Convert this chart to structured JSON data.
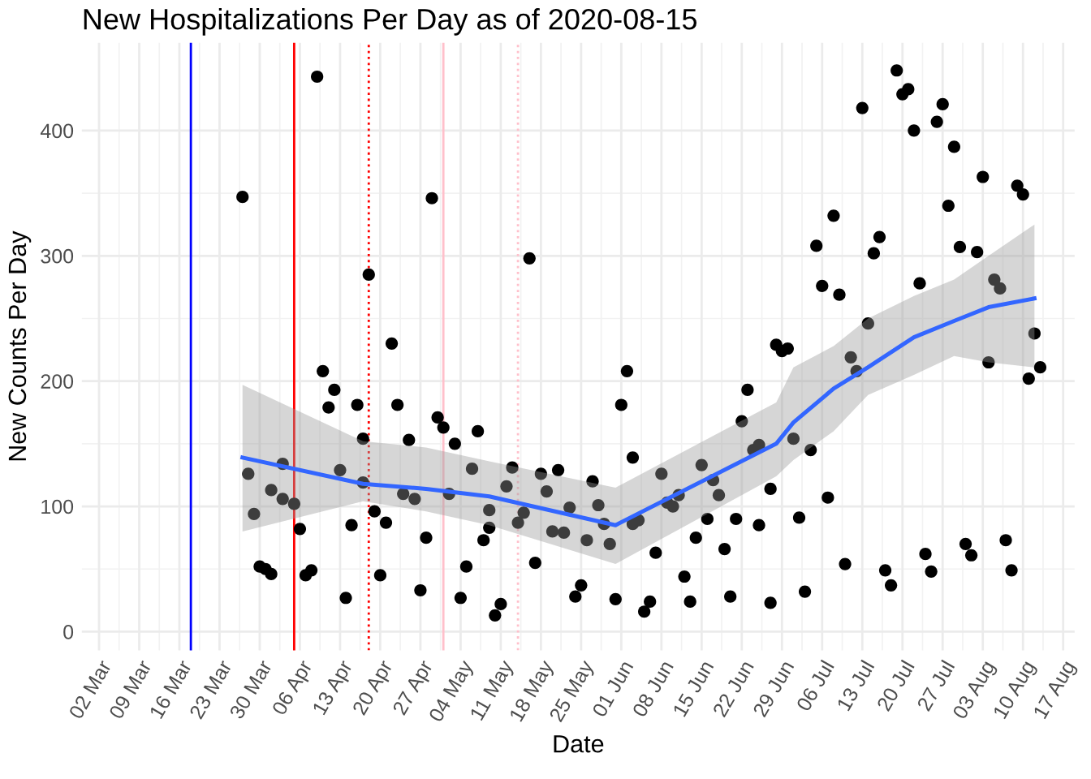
{
  "chart_data": {
    "type": "scatter",
    "title": "New Hospitalizations Per Day as of 2020-08-15",
    "xlabel": "Date",
    "ylabel": "New Counts Per Day",
    "series": [
      {
        "color": "#000000",
        "x": [
          "2020-03-27",
          "2020-03-28",
          "2020-03-29",
          "2020-03-30",
          "2020-03-31",
          "2020-04-01",
          "2020-04-01",
          "2020-04-03",
          "2020-04-03",
          "2020-04-05",
          "2020-04-06",
          "2020-04-07",
          "2020-04-08",
          "2020-04-09",
          "2020-04-10",
          "2020-04-11",
          "2020-04-12",
          "2020-04-13",
          "2020-04-14",
          "2020-04-15",
          "2020-04-16",
          "2020-04-17",
          "2020-04-17",
          "2020-04-18",
          "2020-04-19",
          "2020-04-20",
          "2020-04-21",
          "2020-04-22",
          "2020-04-23",
          "2020-04-24",
          "2020-04-25",
          "2020-04-26",
          "2020-04-27",
          "2020-04-28",
          "2020-04-29",
          "2020-04-30",
          "2020-05-01",
          "2020-05-02",
          "2020-05-03",
          "2020-05-04",
          "2020-05-05",
          "2020-05-06",
          "2020-05-07",
          "2020-05-08",
          "2020-05-09",
          "2020-05-09",
          "2020-05-10",
          "2020-05-11",
          "2020-05-12",
          "2020-05-13",
          "2020-05-14",
          "2020-05-15",
          "2020-05-16",
          "2020-05-17",
          "2020-05-18",
          "2020-05-19",
          "2020-05-20",
          "2020-05-21",
          "2020-05-22",
          "2020-05-23",
          "2020-05-24",
          "2020-05-25",
          "2020-05-26",
          "2020-05-27",
          "2020-05-28",
          "2020-05-29",
          "2020-05-30",
          "2020-05-31",
          "2020-06-01",
          "2020-06-02",
          "2020-06-03",
          "2020-06-03",
          "2020-06-04",
          "2020-06-05",
          "2020-06-06",
          "2020-06-07",
          "2020-06-08",
          "2020-06-09",
          "2020-06-10",
          "2020-06-11",
          "2020-06-12",
          "2020-06-13",
          "2020-06-14",
          "2020-06-15",
          "2020-06-16",
          "2020-06-17",
          "2020-06-18",
          "2020-06-19",
          "2020-06-20",
          "2020-06-21",
          "2020-06-22",
          "2020-06-23",
          "2020-06-24",
          "2020-06-25",
          "2020-06-25",
          "2020-06-27",
          "2020-06-27",
          "2020-06-28",
          "2020-06-29",
          "2020-06-30",
          "2020-07-01",
          "2020-07-02",
          "2020-07-03",
          "2020-07-04",
          "2020-07-05",
          "2020-07-06",
          "2020-07-07",
          "2020-07-08",
          "2020-07-09",
          "2020-07-10",
          "2020-07-11",
          "2020-07-12",
          "2020-07-13",
          "2020-07-14",
          "2020-07-15",
          "2020-07-16",
          "2020-07-17",
          "2020-07-18",
          "2020-07-19",
          "2020-07-20",
          "2020-07-21",
          "2020-07-22",
          "2020-07-23",
          "2020-07-24",
          "2020-07-25",
          "2020-07-26",
          "2020-07-27",
          "2020-07-28",
          "2020-07-29",
          "2020-07-30",
          "2020-07-31",
          "2020-08-01",
          "2020-08-02",
          "2020-08-03",
          "2020-08-04",
          "2020-08-05",
          "2020-08-06",
          "2020-08-07",
          "2020-08-08",
          "2020-08-09",
          "2020-08-10",
          "2020-08-11",
          "2020-08-12",
          "2020-08-13"
        ],
        "values": [
          347,
          126,
          94,
          52,
          50,
          46,
          113,
          134,
          106,
          102,
          82,
          45,
          49,
          443,
          208,
          179,
          193,
          129,
          27,
          85,
          181,
          154,
          119,
          285,
          96,
          45,
          87,
          230,
          181,
          110,
          153,
          106,
          33,
          75,
          346,
          171,
          163,
          110,
          150,
          27,
          52,
          130,
          160,
          73,
          83,
          97,
          13,
          22,
          116,
          131,
          87,
          95,
          298,
          55,
          126,
          112,
          80,
          129,
          79,
          99,
          28,
          37,
          73,
          120,
          101,
          86,
          70,
          26,
          181,
          208,
          86,
          139,
          89,
          16,
          24,
          63,
          126,
          103,
          100,
          109,
          44,
          24,
          75,
          133,
          90,
          121,
          109,
          66,
          28,
          90,
          168,
          193,
          145,
          149,
          85,
          23,
          114,
          229,
          224,
          226,
          154,
          91,
          32,
          145,
          308,
          276,
          107,
          332,
          269,
          54,
          219,
          208,
          418,
          246,
          302,
          315,
          49,
          37,
          448,
          429,
          433,
          400,
          278,
          62,
          48,
          407,
          421,
          340,
          387,
          307,
          70,
          61,
          303,
          363,
          215,
          281,
          274,
          73,
          49,
          356,
          349,
          202,
          238,
          211
        ]
      },
      {
        "type": "line",
        "marker": "none",
        "color": "#3366ff",
        "x": [
          "2020-03-27",
          "2020-04-17",
          "2020-04-28",
          "2020-05-09",
          "2020-05-31",
          "2020-06-28",
          "2020-07-01",
          "2020-07-08",
          "2020-07-14",
          "2020-07-22",
          "2020-07-29",
          "2020-08-04",
          "2020-08-12"
        ],
        "values": [
          139,
          118,
          114,
          108,
          85,
          150,
          167,
          194,
          211,
          235,
          248,
          259,
          266
        ],
        "lower": [
          80,
          104,
          96,
          85,
          54,
          124,
          137,
          160,
          189,
          205,
          220,
          215,
          211
        ],
        "upper": [
          197,
          152,
          147,
          136,
          115,
          183,
          211,
          228,
          250,
          268,
          281,
          300,
          325
        ]
      }
    ],
    "xlim": [
      "2020-02-28",
      "2020-08-19"
    ],
    "ylim": [
      -15,
      470
    ],
    "xticks": [
      {
        "value": "2020-03-02",
        "label": "02 Mar"
      },
      {
        "value": "2020-03-09",
        "label": "09 Mar"
      },
      {
        "value": "2020-03-16",
        "label": "16 Mar"
      },
      {
        "value": "2020-03-23",
        "label": "23 Mar"
      },
      {
        "value": "2020-03-30",
        "label": "30 Mar"
      },
      {
        "value": "2020-04-06",
        "label": "06 Apr"
      },
      {
        "value": "2020-04-13",
        "label": "13 Apr"
      },
      {
        "value": "2020-04-20",
        "label": "20 Apr"
      },
      {
        "value": "2020-04-27",
        "label": "27 Apr"
      },
      {
        "value": "2020-05-04",
        "label": "04 May"
      },
      {
        "value": "2020-05-11",
        "label": "11 May"
      },
      {
        "value": "2020-05-18",
        "label": "18 May"
      },
      {
        "value": "2020-05-25",
        "label": "25 May"
      },
      {
        "value": "2020-06-01",
        "label": "01 Jun"
      },
      {
        "value": "2020-06-08",
        "label": "08 Jun"
      },
      {
        "value": "2020-06-15",
        "label": "15 Jun"
      },
      {
        "value": "2020-06-22",
        "label": "22 Jun"
      },
      {
        "value": "2020-06-29",
        "label": "29 Jun"
      },
      {
        "value": "2020-07-06",
        "label": "06 Jul"
      },
      {
        "value": "2020-07-13",
        "label": "13 Jul"
      },
      {
        "value": "2020-07-20",
        "label": "20 Jul"
      },
      {
        "value": "2020-07-27",
        "label": "27 Jul"
      },
      {
        "value": "2020-08-03",
        "label": "03 Aug"
      },
      {
        "value": "2020-08-10",
        "label": "10 Aug"
      },
      {
        "value": "2020-08-17",
        "label": "17 Aug"
      }
    ],
    "yticks": [
      0,
      100,
      200,
      300,
      400
    ],
    "ref_lines": [
      {
        "axis": "x",
        "value": "2020-03-18",
        "color": "#0000ff",
        "line_style": "solid"
      },
      {
        "axis": "x",
        "value": "2020-04-05",
        "color": "#ff0000",
        "line_style": "solid"
      },
      {
        "axis": "x",
        "value": "2020-04-18",
        "color": "#ff0000",
        "line_style": "dotted"
      },
      {
        "axis": "x",
        "value": "2020-05-01",
        "color": "#ffc0cb",
        "line_style": "solid"
      },
      {
        "axis": "x",
        "value": "2020-05-14",
        "color": "#ffc0cb",
        "line_style": "dotted"
      }
    ],
    "grid": true,
    "marker": "circle",
    "legend": false
  }
}
